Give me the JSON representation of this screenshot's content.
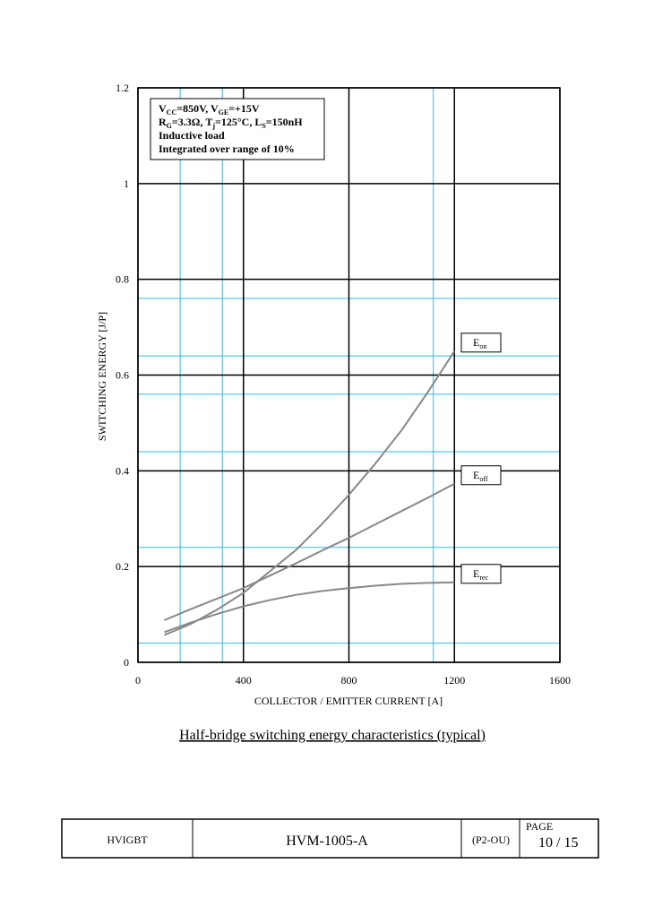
{
  "chart_data": {
    "type": "line",
    "ylabel": "SWITCHING ENERGY [J/P]",
    "xlabel": "COLLECTOR / EMITTER CURRENT [A]",
    "x": [
      100,
      200,
      300,
      400,
      500,
      600,
      700,
      800,
      900,
      1000,
      1100,
      1200
    ],
    "series": [
      {
        "name": "E",
        "subscript": "on",
        "color": "#888888",
        "values": [
          0.057,
          0.08,
          0.11,
          0.145,
          0.19,
          0.235,
          0.29,
          0.35,
          0.415,
          0.485,
          0.565,
          0.65
        ]
      },
      {
        "name": "E",
        "subscript": "off",
        "color": "#888888",
        "values": [
          0.088,
          0.111,
          0.133,
          0.155,
          0.181,
          0.207,
          0.234,
          0.26,
          0.288,
          0.316,
          0.344,
          0.373
        ]
      },
      {
        "name": "E",
        "subscript": "rec",
        "color": "#888888",
        "values": [
          0.063,
          0.083,
          0.101,
          0.117,
          0.13,
          0.141,
          0.149,
          0.155,
          0.16,
          0.164,
          0.166,
          0.167
        ]
      }
    ],
    "xlim": [
      0,
      1600
    ],
    "xticks": [
      0,
      400,
      800,
      1200,
      1600
    ],
    "ylim": [
      0,
      1.2
    ],
    "yticks": [
      0,
      0.2,
      0.4,
      0.6,
      0.8,
      1,
      1.2
    ],
    "grid": true,
    "grid_color": "#000000",
    "minor_xgrid": [
      160,
      320,
      1120
    ],
    "minor_ygrid": [
      0.04,
      0.24,
      0.44,
      0.56,
      0.64,
      0.76
    ],
    "minor_grid_color": "#33bbdd",
    "annotation": [
      [
        {
          "text": "V"
        },
        {
          "text": "CC",
          "sub": true
        },
        {
          "text": "=850V, V"
        },
        {
          "text": "GE",
          "sub": true
        },
        {
          "text": "=+15V"
        }
      ],
      [
        {
          "text": "R"
        },
        {
          "text": "G",
          "sub": true
        },
        {
          "text": "=3.3Ω, T"
        },
        {
          "text": "j",
          "sub": true
        },
        {
          "text": "=125°C, L"
        },
        {
          "text": "S",
          "sub": true
        },
        {
          "text": "=150nH"
        }
      ],
      [
        {
          "text": "Inductive load"
        }
      ],
      [
        {
          "text": "Integrated over range of 10%"
        }
      ]
    ]
  },
  "caption": "Half-bridge switching energy characteristics (typical)",
  "footer": {
    "product": "HVIGBT",
    "document": "HVM-1005-A",
    "code": "(P2-OU)",
    "page_label": "PAGE",
    "page": "10 / 15"
  }
}
